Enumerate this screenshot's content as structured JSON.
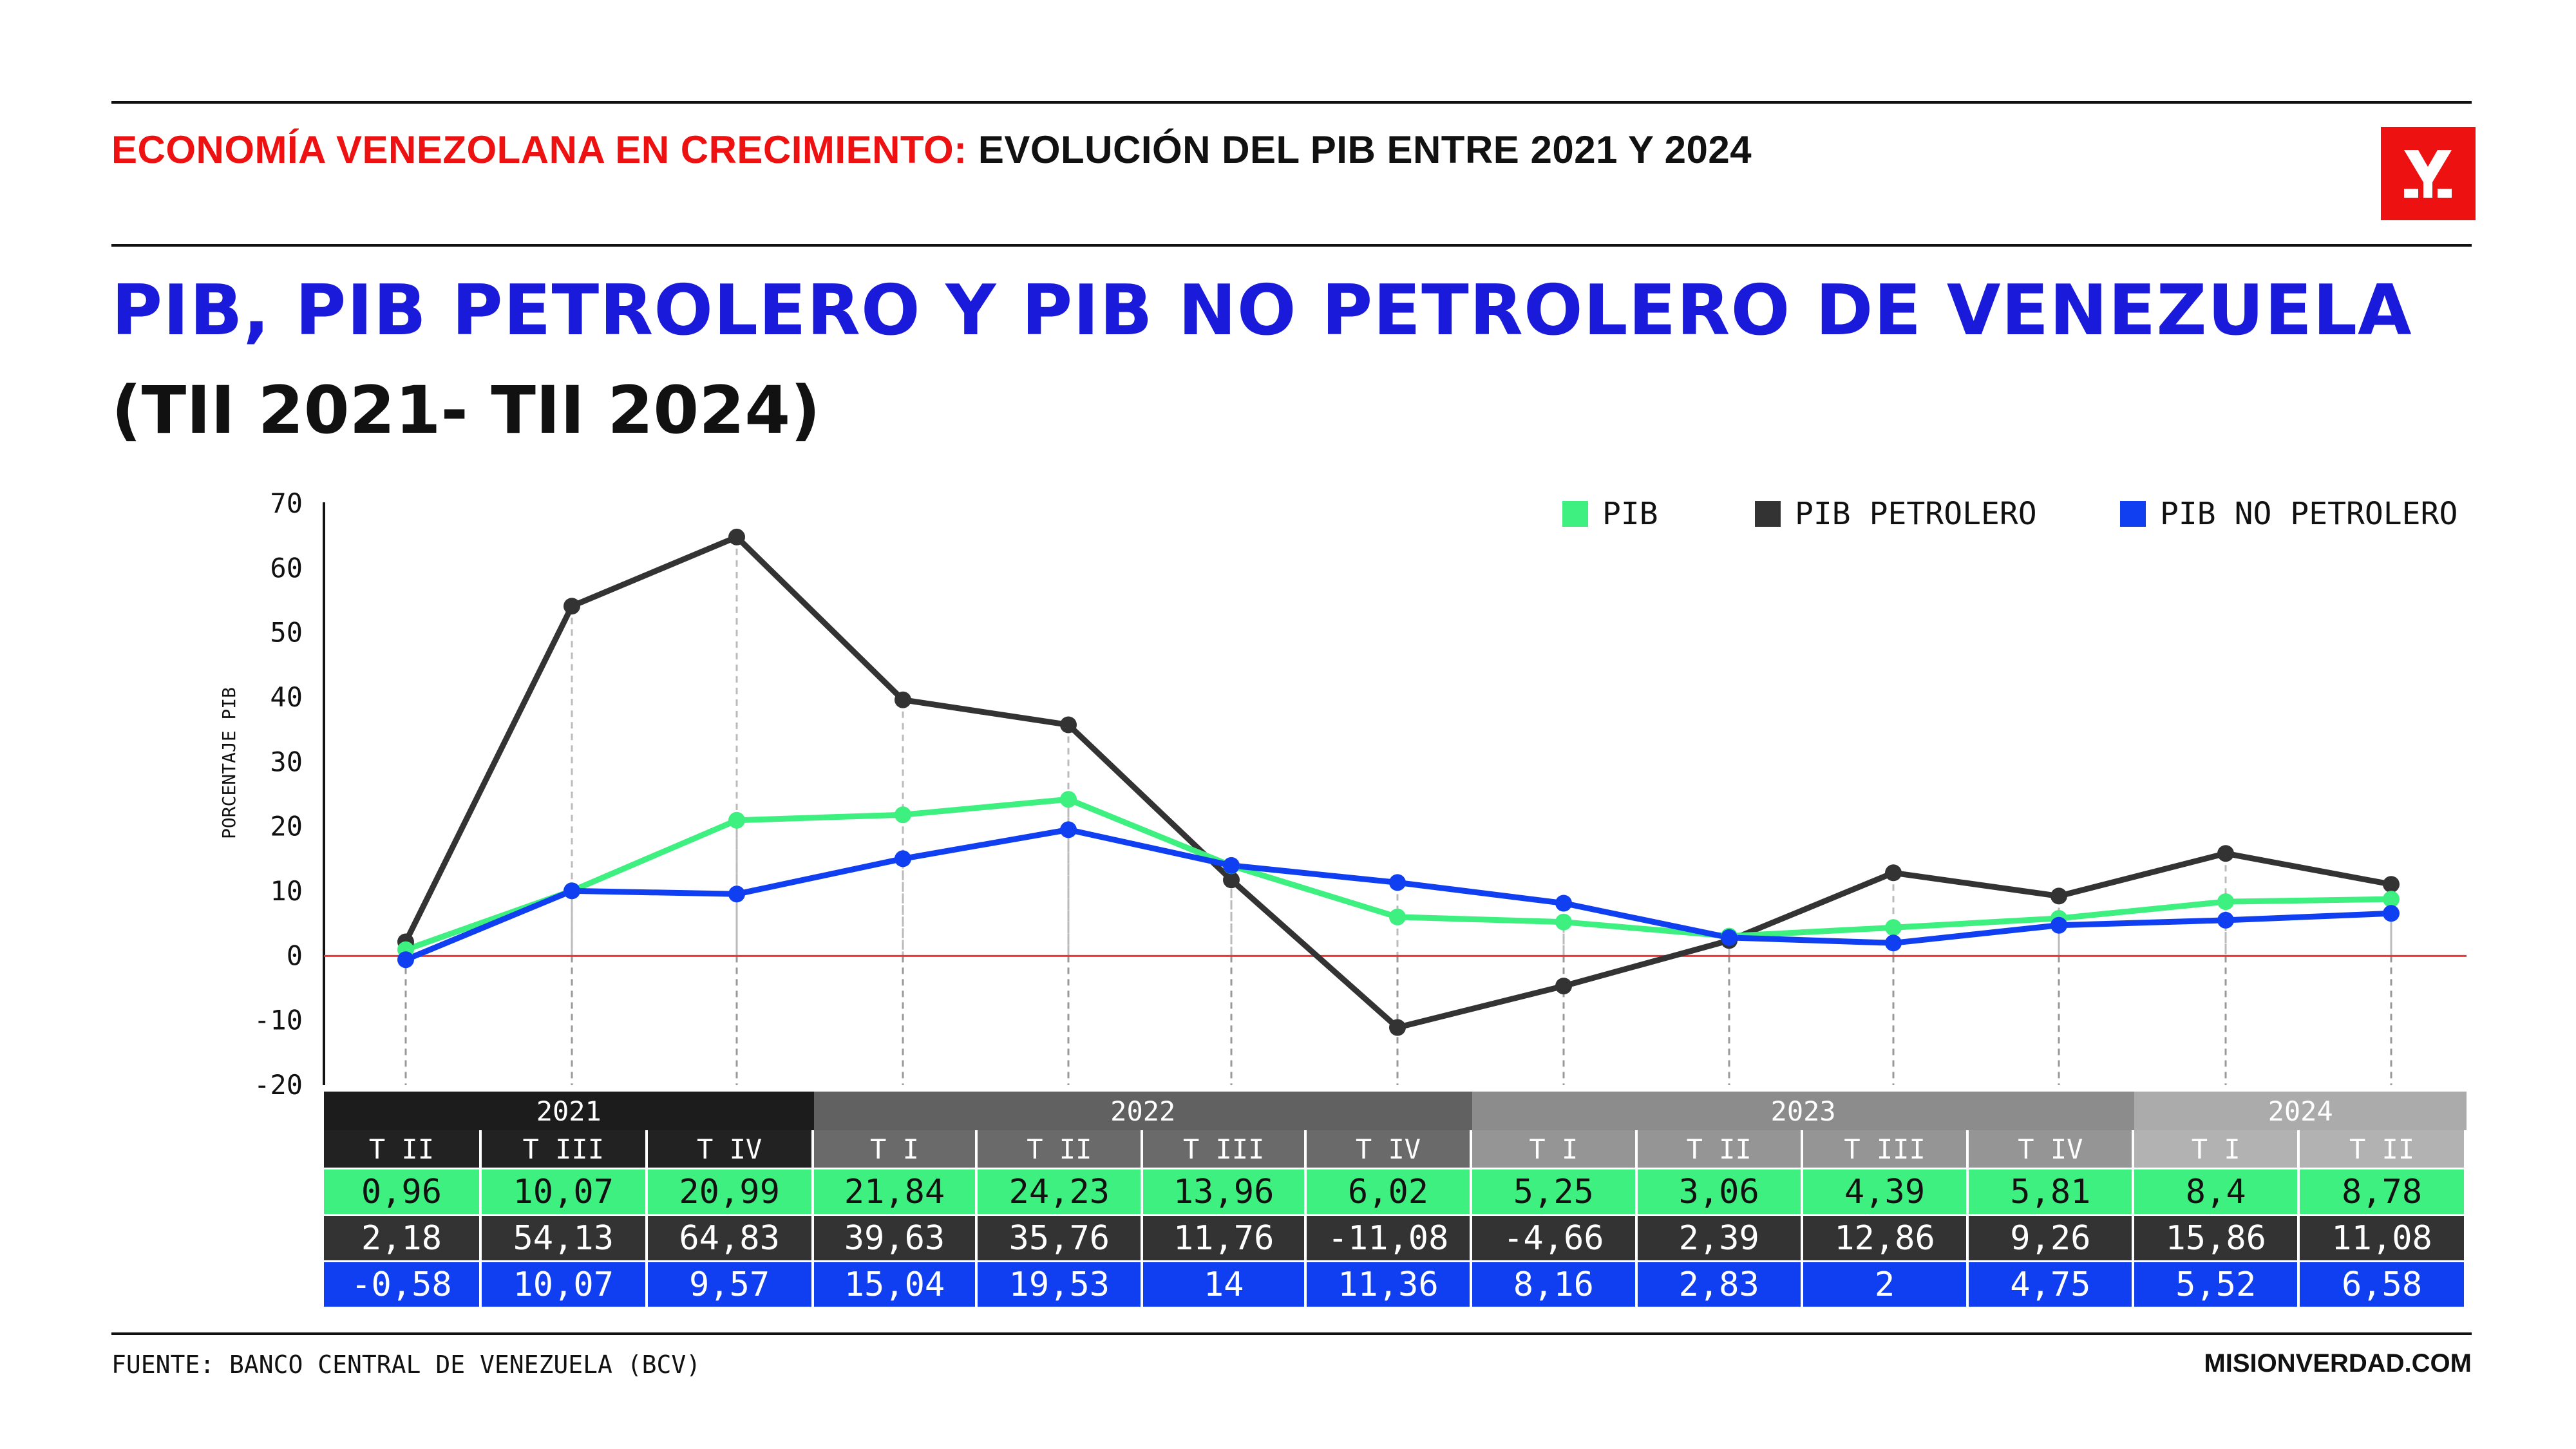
{
  "header": {
    "kicker_highlight": "ECONOMÍA VENEZOLANA EN CRECIMIENTO:",
    "kicker_rest": " EVOLUCIÓN DEL PIB ENTRE 2021 Y 2024",
    "logo_icon": "misionverdad-logo-icon"
  },
  "chart_data": {
    "type": "line",
    "title": "PIB, PIB PETROLERO Y PIB NO PETROLERO DE VENEZUELA",
    "subtitle": "(TII 2021- TII 2024)",
    "ylabel": "PORCENTAJE PIB",
    "xlabel": "",
    "ylim": [
      -20,
      70
    ],
    "yticks": [
      "70",
      "60",
      "50",
      "40",
      "30",
      "20",
      "10",
      "0",
      "-10",
      "-20"
    ],
    "categories": [
      "T II",
      "T III",
      "T IV",
      "T I",
      "T II",
      "T III",
      "T IV",
      "T I",
      "T II",
      "T III",
      "T IV",
      "T I",
      "T II"
    ],
    "series": [
      {
        "name": "PIB",
        "color": "#3df07f",
        "values": [
          0.96,
          10.07,
          20.99,
          21.84,
          24.23,
          13.96,
          6.02,
          5.25,
          3.06,
          4.39,
          5.81,
          8.4,
          8.78
        ]
      },
      {
        "name": "PIB PETROLERO",
        "color": "#333333",
        "values": [
          2.18,
          54.13,
          64.83,
          39.63,
          35.76,
          11.76,
          -11.08,
          -4.66,
          2.39,
          12.86,
          9.26,
          15.86,
          11.08
        ]
      },
      {
        "name": "PIB NO PETROLERO",
        "color": "#0f3ff0",
        "values": [
          -0.58,
          10.07,
          9.57,
          15.04,
          19.53,
          14,
          11.36,
          8.16,
          2.83,
          2,
          4.75,
          5.52,
          6.58
        ]
      }
    ],
    "zero_line_color": "#ee3333",
    "legend_placement": "top-right"
  },
  "table": {
    "years": [
      {
        "label": "2021",
        "span": 3,
        "color": "#1c1c1c"
      },
      {
        "label": "2022",
        "span": 4,
        "color": "#616161"
      },
      {
        "label": "2023",
        "span": 4,
        "color": "#8c8c8c"
      },
      {
        "label": "2024",
        "span": 2,
        "color": "#ababab"
      }
    ],
    "quarters": [
      "T II",
      "T III",
      "T IV",
      "T I",
      "T II",
      "T III",
      "T IV",
      "T I",
      "T II",
      "T III",
      "T IV",
      "T I",
      "T II"
    ],
    "quarter_colors": [
      "#222222",
      "#222222",
      "#222222",
      "#6a6a6a",
      "#6a6a6a",
      "#6a6a6a",
      "#6a6a6a",
      "#959595",
      "#959595",
      "#959595",
      "#959595",
      "#b2b2b2",
      "#b2b2b2"
    ],
    "rows": [
      {
        "bg": "#3df07f",
        "fg": "#111111",
        "values": [
          "0,96",
          "10,07",
          "20,99",
          "21,84",
          "24,23",
          "13,96",
          "6,02",
          "5,25",
          "3,06",
          "4,39",
          "5,81",
          "8,4",
          "8,78"
        ]
      },
      {
        "bg": "#333333",
        "fg": "#ffffff",
        "values": [
          "2,18",
          "54,13",
          "64,83",
          "39,63",
          "35,76",
          "11,76",
          "-11,08",
          "-4,66",
          "2,39",
          "12,86",
          "9,26",
          "15,86",
          "11,08"
        ]
      },
      {
        "bg": "#0f3ff0",
        "fg": "#ffffff",
        "values": [
          "-0,58",
          "10,07",
          "9,57",
          "15,04",
          "19,53",
          "14",
          "11,36",
          "8,16",
          "2,83",
          "2",
          "4,75",
          "5,52",
          "6,58"
        ]
      }
    ]
  },
  "footer": {
    "source": "FUENTE: BANCO CENTRAL DE VENEZUELA (BCV)",
    "site": "MISIONVERDAD.COM"
  }
}
